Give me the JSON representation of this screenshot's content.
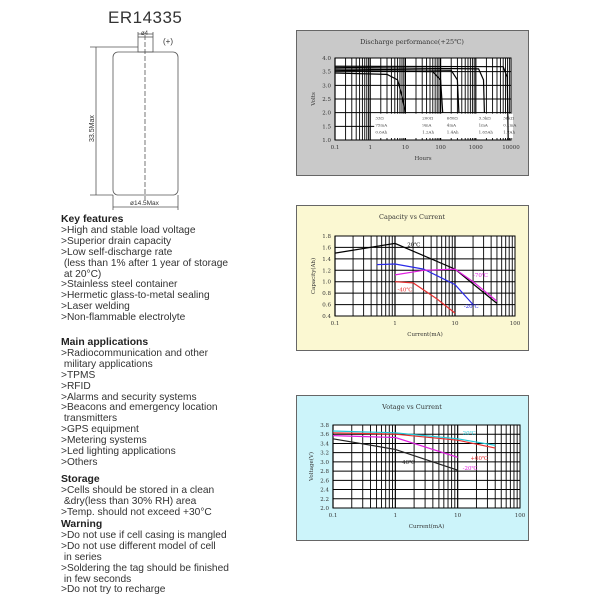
{
  "product": {
    "model": "ER14335",
    "terminal_label": "(+)",
    "terminal_dim": "ø4",
    "height_dim": "33.5Max",
    "diameter_dim": "ø14.5Max"
  },
  "sections": [
    {
      "heading": "Key features",
      "lines": [
        ">High and stable load voltage",
        ">Superior drain capacity",
        ">Low self-discharge rate",
        " (less than 1% after 1 year of storage",
        " at 20°C)",
        ">Stainless steel container",
        ">Hermetic glass-to-metal sealing",
        ">Laser welding",
        ">Non-flammable electrolyte"
      ]
    },
    {
      "heading": "Main applications",
      "lines": [
        ">Radiocommunication and other",
        " military applications",
        ">TPMS",
        ">RFID",
        ">Alarms and security systems",
        ">Beacons and emergency location",
        " transmitters",
        ">GPS equipment",
        ">Metering systems",
        ">Led lighting applications",
        ">Others"
      ]
    },
    {
      "heading": "Storage",
      "lines": [
        ">Cells should be stored in a clean",
        " &dry(less than 30% RH) area",
        ">Temp. should not exceed +30°C"
      ]
    },
    {
      "heading": "Warning",
      "lines": [
        ">Do not use if cell casing is mangled",
        ">Do not use different model of cell",
        " in series",
        ">Soldering the tag should be finished",
        " in few seconds",
        ">Do not try to recharge"
      ]
    }
  ],
  "chart_data": [
    {
      "type": "line",
      "title": "Discharge performance(+25℃)",
      "xlabel": "Hours",
      "ylabel": "Volts",
      "xscale": "log",
      "xlim": [
        0.1,
        10000
      ],
      "ylim": [
        1.0,
        4.0
      ],
      "xticks": [
        "0.1",
        "1",
        "10",
        "100",
        "1000",
        "10000"
      ],
      "yticks": [
        "1.0",
        "1.5",
        "2.0",
        "2.5",
        "3.0",
        "3.5",
        "4.0"
      ],
      "grid": true,
      "background": "#c9c9c9",
      "legend_table": [
        [
          "33Ω",
          "75mA",
          "0.6Ah"
        ],
        [
          "200Ω",
          "9mA",
          "1.2Ah"
        ],
        [
          "680Ω",
          "4mA",
          "1.4Ah"
        ],
        [
          "3.3kΩ",
          "1mA",
          "1.65Ah"
        ],
        [
          "36kΩ",
          "0.1mA",
          "1.7Ah"
        ]
      ],
      "series": [
        {
          "color": "#000000",
          "points": [
            [
              0.1,
              3.45
            ],
            [
              3,
              3.4
            ],
            [
              6,
              3.2
            ],
            [
              8,
              2.6
            ],
            [
              10,
              2.0
            ]
          ]
        },
        {
          "color": "#000000",
          "points": [
            [
              0.1,
              3.55
            ],
            [
              60,
              3.5
            ],
            [
              100,
              3.2
            ],
            [
              115,
              2.0
            ]
          ]
        },
        {
          "color": "#000000",
          "points": [
            [
              0.1,
              3.6
            ],
            [
              200,
              3.55
            ],
            [
              300,
              3.2
            ],
            [
              330,
              2.0
            ]
          ]
        },
        {
          "color": "#000000",
          "points": [
            [
              0.1,
              3.66
            ],
            [
              1200,
              3.6
            ],
            [
              1650,
              3.2
            ],
            [
              1750,
              2.0
            ]
          ]
        },
        {
          "color": "#000000",
          "points": [
            [
              0.1,
              3.7
            ],
            [
              6000,
              3.68
            ],
            [
              7800,
              3.3
            ],
            [
              8300,
              1.0
            ]
          ]
        }
      ]
    },
    {
      "type": "line",
      "title": "Capacity vs Current",
      "xlabel": "Current(mA)",
      "ylabel": "Capacity(Ah)",
      "xscale": "log",
      "xlim": [
        0.1,
        100
      ],
      "ylim": [
        0.4,
        1.8
      ],
      "xticks": [
        "0.1",
        "1",
        "10",
        "100"
      ],
      "yticks": [
        "0.4",
        "0.6",
        "0.8",
        "1.0",
        "1.2",
        "1.4",
        "1.6",
        "1.8"
      ],
      "grid": true,
      "background": "#fbf8d2",
      "series": [
        {
          "name": "20℃",
          "color": "#000000",
          "label_at": [
            1.6,
            1.62
          ],
          "points": [
            [
              0.1,
              1.5
            ],
            [
              1,
              1.67
            ],
            [
              10,
              1.22
            ],
            [
              50,
              0.62
            ]
          ]
        },
        {
          "name": "-20℃",
          "color": "#2a2ae8",
          "label_at": [
            14,
            0.54
          ],
          "points": [
            [
              0.5,
              1.3
            ],
            [
              1,
              1.31
            ],
            [
              3,
              1.22
            ],
            [
              10,
              0.95
            ],
            [
              20,
              0.6
            ]
          ]
        },
        {
          "name": "-70℃",
          "color": "#e020e0",
          "label_at": [
            20,
            1.08
          ],
          "points": [
            [
              1,
              1.12
            ],
            [
              3,
              1.2
            ],
            [
              10,
              1.22
            ],
            [
              20,
              1.0
            ],
            [
              50,
              0.66
            ]
          ]
        },
        {
          "name": "-40℃",
          "color": "#e83030",
          "label_at": [
            1.1,
            0.83
          ],
          "points": [
            [
              1,
              1.0
            ],
            [
              2,
              0.98
            ],
            [
              5,
              0.7
            ],
            [
              10,
              0.45
            ]
          ]
        }
      ]
    },
    {
      "type": "line",
      "title": "Votage vs Current",
      "xlabel": "Current(mA)",
      "ylabel": "Voltage(V)",
      "xscale": "log",
      "xlim": [
        0.1,
        100
      ],
      "ylim": [
        2.0,
        3.8
      ],
      "xticks": [
        "0.1",
        "1",
        "10",
        "100"
      ],
      "yticks": [
        "2.0",
        "2.2",
        "2.4",
        "2.6",
        "2.8",
        "3.0",
        "3.2",
        "3.4",
        "3.6",
        "3.8"
      ],
      "grid": true,
      "background": "#ccf4fa",
      "series": [
        {
          "name": "20℃",
          "color": "#20c8d8",
          "label_at": [
            12,
            3.58
          ],
          "points": [
            [
              0.1,
              3.67
            ],
            [
              1,
              3.63
            ],
            [
              10,
              3.5
            ],
            [
              40,
              3.36
            ]
          ]
        },
        {
          "name": "+60℃",
          "color": "#e83030",
          "label_at": [
            16,
            3.04
          ],
          "points": [
            [
              0.1,
              3.63
            ],
            [
              1,
              3.6
            ],
            [
              10,
              3.47
            ],
            [
              40,
              3.3
            ]
          ]
        },
        {
          "name": "-20℃",
          "color": "#e020e0",
          "label_at": [
            12,
            2.82
          ],
          "points": [
            [
              0.1,
              3.57
            ],
            [
              1,
              3.53
            ],
            [
              10,
              3.1
            ]
          ]
        },
        {
          "name": "-40℃",
          "color": "#222222",
          "label_at": [
            1.2,
            2.95
          ],
          "points": [
            [
              0.1,
              3.5
            ],
            [
              1,
              3.27
            ],
            [
              10,
              2.82
            ]
          ]
        }
      ]
    }
  ]
}
